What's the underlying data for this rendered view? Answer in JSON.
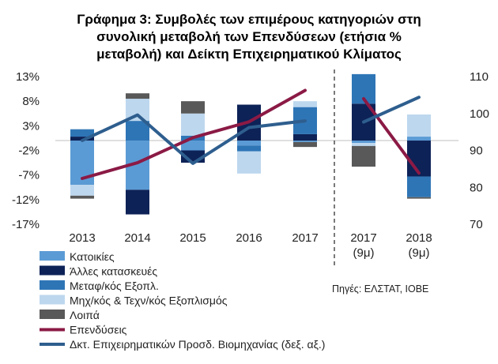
{
  "chart_data": {
    "type": "bar",
    "stacked": true,
    "title": [
      "Γράφημα 3: Συμβολές των επιμέρους κατηγοριών στη",
      "συνολική μεταβολή των Επενδύσεων (ετήσια %",
      "μεταβολή) και Δείκτη Επιχειρηματικού  Κλίματος"
    ],
    "categories": [
      {
        "label": "2013",
        "sub": ""
      },
      {
        "label": "2014",
        "sub": ""
      },
      {
        "label": "2015",
        "sub": ""
      },
      {
        "label": "2016",
        "sub": ""
      },
      {
        "label": "2017",
        "sub": ""
      },
      {
        "label": "2017",
        "sub": "(9μ)"
      },
      {
        "label": "2018",
        "sub": "(9μ)"
      }
    ],
    "y_left": {
      "min": -17,
      "max": 13,
      "ticks": [
        "13%",
        "8%",
        "3%",
        "-2%",
        "-7%",
        "-12%",
        "-17%"
      ],
      "tick_values": [
        13,
        8,
        3,
        -2,
        -7,
        -12,
        -17
      ]
    },
    "y_right": {
      "min": 70,
      "max": 110,
      "ticks": [
        "110",
        "100",
        "90",
        "80",
        "70"
      ],
      "tick_values": [
        110,
        100,
        90,
        80,
        70
      ]
    },
    "bar_series": [
      {
        "name": "Κατοικίες",
        "color": "#5b9bd5",
        "values": [
          -9,
          -10,
          -2,
          -1,
          -0.3,
          -0.5,
          0.8
        ]
      },
      {
        "name": "Άλλες κατασκευές",
        "color": "#0d2257",
        "values": [
          0.8,
          -5,
          -2.5,
          7.3,
          1.3,
          7.5,
          -7.3
        ]
      },
      {
        "name": "Μεταφ/κός Εξοπλ.",
        "color": "#2e75b6",
        "values": [
          1.5,
          4,
          1,
          -1.2,
          5.5,
          6,
          -4.2
        ]
      },
      {
        "name": "Μηχ/κός & Τεχν/κός Εξοπλισμός",
        "color": "#bdd7ee",
        "values": [
          -2.2,
          4.5,
          4.5,
          -4.5,
          1.2,
          -0.6,
          4.5
        ]
      },
      {
        "name": "Λοιπά",
        "color": "#595959",
        "values": [
          -0.6,
          1.1,
          2.5,
          0,
          -1,
          -4.2,
          -0.3
        ]
      }
    ],
    "line_series": [
      {
        "name": "Επενδύσεις",
        "axis": "left",
        "color": "#8b1a45",
        "values": [
          -7.7,
          -4.5,
          0.6,
          3.8,
          10.2,
          8.5,
          -6.6
        ]
      },
      {
        "name": "Δκτ. Επιχειρηματικών Προσδ. Βιομηχανίας (δεξ. αξ.)",
        "axis": "right",
        "color": "#2e5e8e",
        "values": [
          92.7,
          99.6,
          86.5,
          96.2,
          98,
          97.7,
          104.4
        ]
      }
    ],
    "divider_after_index": 4,
    "legend_position": "bottom-left",
    "source": "Πηγές: ΕΛΣΤΑΤ, ΙΟΒΕ"
  }
}
